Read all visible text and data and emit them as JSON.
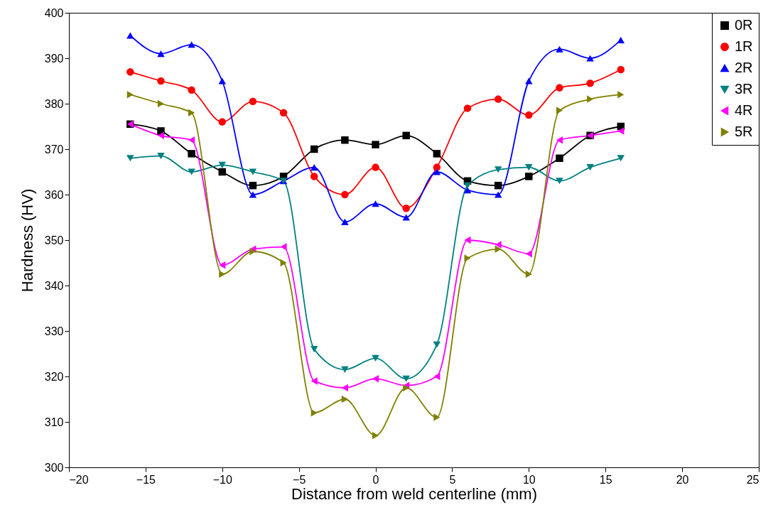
{
  "chart_data": {
    "type": "line",
    "xlabel": "Distance from weld centerline (mm)",
    "ylabel": "Hardness (HV)",
    "x": [
      -16,
      -14,
      -12,
      -10,
      -8,
      -6,
      -4,
      -2,
      0,
      2,
      4,
      6,
      8,
      10,
      12,
      14,
      16
    ],
    "xlim": [
      -20,
      25
    ],
    "xticks": [
      -20,
      -15,
      -10,
      -5,
      0,
      5,
      10,
      15,
      20,
      25
    ],
    "ylim": [
      300,
      400
    ],
    "yticks": [
      300,
      310,
      320,
      330,
      340,
      350,
      360,
      370,
      380,
      390,
      400
    ],
    "legend": "top right",
    "line_style": "solid",
    "series": [
      {
        "name": "0R",
        "color": "#000000",
        "marker": "square",
        "values": [
          375.5,
          374,
          369,
          365,
          362,
          364,
          370,
          372,
          371,
          373,
          369,
          363,
          362,
          364,
          368,
          373,
          375
        ]
      },
      {
        "name": "1R",
        "color": "#ff0000",
        "marker": "circle",
        "values": [
          387,
          385,
          383,
          376,
          380.5,
          378,
          364,
          360,
          366,
          357,
          366,
          379,
          381,
          377.5,
          383.5,
          384.5,
          387.5
        ]
      },
      {
        "name": "2R",
        "color": "#0000ff",
        "marker": "triangle-up",
        "values": [
          395,
          391,
          393,
          385,
          360,
          363,
          366,
          354,
          358,
          355,
          365,
          361,
          360,
          385,
          392,
          390,
          394
        ]
      },
      {
        "name": "3R",
        "color": "#008080",
        "marker": "triangle-down",
        "values": [
          368,
          368.5,
          365,
          366.5,
          365,
          363,
          326,
          321.5,
          324,
          319.5,
          327,
          362,
          365.5,
          366,
          363,
          366,
          368
        ]
      },
      {
        "name": "4R",
        "color": "#ff00ff",
        "marker": "triangle-left",
        "values": [
          375.5,
          373,
          372,
          344.5,
          348,
          348.5,
          319,
          317.5,
          319.5,
          318,
          320,
          350,
          349,
          347,
          372,
          373,
          374
        ]
      },
      {
        "name": "5R",
        "color": "#808000",
        "marker": "triangle-right",
        "values": [
          382,
          380,
          378,
          342.5,
          347.5,
          345,
          312,
          315,
          307,
          317.5,
          311,
          346,
          348,
          342.5,
          378.5,
          381,
          382
        ]
      }
    ]
  }
}
